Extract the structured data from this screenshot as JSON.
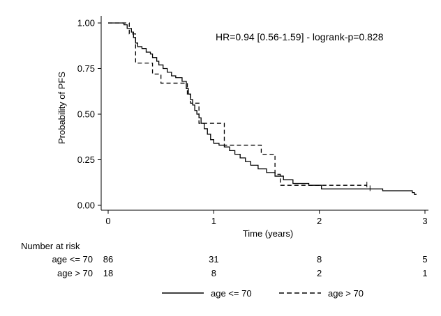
{
  "chart_data": {
    "type": "line",
    "title": "",
    "xlabel": "Time (years)",
    "ylabel": "Probability of PFS",
    "xlim": [
      0,
      3
    ],
    "ylim": [
      0,
      1
    ],
    "x_ticks": [
      "0",
      "1",
      "2",
      "3"
    ],
    "y_ticks": [
      "0.00",
      "0.25",
      "0.50",
      "0.75",
      "1.00"
    ],
    "grid": false,
    "legend_position": "bottom",
    "annotation": "HR=0.94 [0.56-1.59] - logrank-p=0.828",
    "series": [
      {
        "name": "age <= 70",
        "line_style": "solid",
        "color": "#000000",
        "steps": [
          [
            0,
            1.0
          ],
          [
            0.15,
            0.99
          ],
          [
            0.18,
            0.97
          ],
          [
            0.22,
            0.95
          ],
          [
            0.24,
            0.92
          ],
          [
            0.26,
            0.89
          ],
          [
            0.28,
            0.87
          ],
          [
            0.32,
            0.86
          ],
          [
            0.36,
            0.84
          ],
          [
            0.4,
            0.83
          ],
          [
            0.42,
            0.81
          ],
          [
            0.46,
            0.79
          ],
          [
            0.48,
            0.77
          ],
          [
            0.52,
            0.75
          ],
          [
            0.56,
            0.73
          ],
          [
            0.6,
            0.71
          ],
          [
            0.64,
            0.7
          ],
          [
            0.7,
            0.68
          ],
          [
            0.74,
            0.64
          ],
          [
            0.76,
            0.61
          ],
          [
            0.78,
            0.58
          ],
          [
            0.8,
            0.55
          ],
          [
            0.82,
            0.52
          ],
          [
            0.84,
            0.5
          ],
          [
            0.86,
            0.48
          ],
          [
            0.88,
            0.45
          ],
          [
            0.91,
            0.42
          ],
          [
            0.94,
            0.39
          ],
          [
            0.97,
            0.36
          ],
          [
            1.0,
            0.34
          ],
          [
            1.05,
            0.33
          ],
          [
            1.1,
            0.32
          ],
          [
            1.15,
            0.3
          ],
          [
            1.2,
            0.28
          ],
          [
            1.25,
            0.26
          ],
          [
            1.3,
            0.24
          ],
          [
            1.35,
            0.22
          ],
          [
            1.42,
            0.2
          ],
          [
            1.5,
            0.18
          ],
          [
            1.58,
            0.16
          ],
          [
            1.66,
            0.14
          ],
          [
            1.75,
            0.12
          ],
          [
            1.9,
            0.11
          ],
          [
            2.02,
            0.09
          ],
          [
            2.6,
            0.08
          ],
          [
            2.88,
            0.07
          ],
          [
            2.9,
            0.06
          ]
        ],
        "end_time": 2.92,
        "censor_marks": [
          [
            2.48,
            0.09
          ]
        ]
      },
      {
        "name": "age > 70",
        "line_style": "dashed",
        "color": "#000000",
        "steps": [
          [
            0,
            1.0
          ],
          [
            0.2,
            0.94
          ],
          [
            0.26,
            0.78
          ],
          [
            0.42,
            0.72
          ],
          [
            0.5,
            0.67
          ],
          [
            0.75,
            0.61
          ],
          [
            0.78,
            0.56
          ],
          [
            0.86,
            0.45
          ],
          [
            1.1,
            0.33
          ],
          [
            1.45,
            0.28
          ],
          [
            1.58,
            0.17
          ],
          [
            1.63,
            0.11
          ]
        ],
        "end_time": 2.45,
        "censor_marks": [
          [
            2.45,
            0.11
          ]
        ]
      }
    ],
    "number_at_risk": {
      "header": "Number at risk",
      "rows": [
        {
          "label": "age <= 70",
          "values": [
            "86",
            "31",
            "8",
            "5"
          ]
        },
        {
          "label": "age > 70",
          "values": [
            "18",
            "8",
            "2",
            "1"
          ]
        }
      ]
    }
  }
}
